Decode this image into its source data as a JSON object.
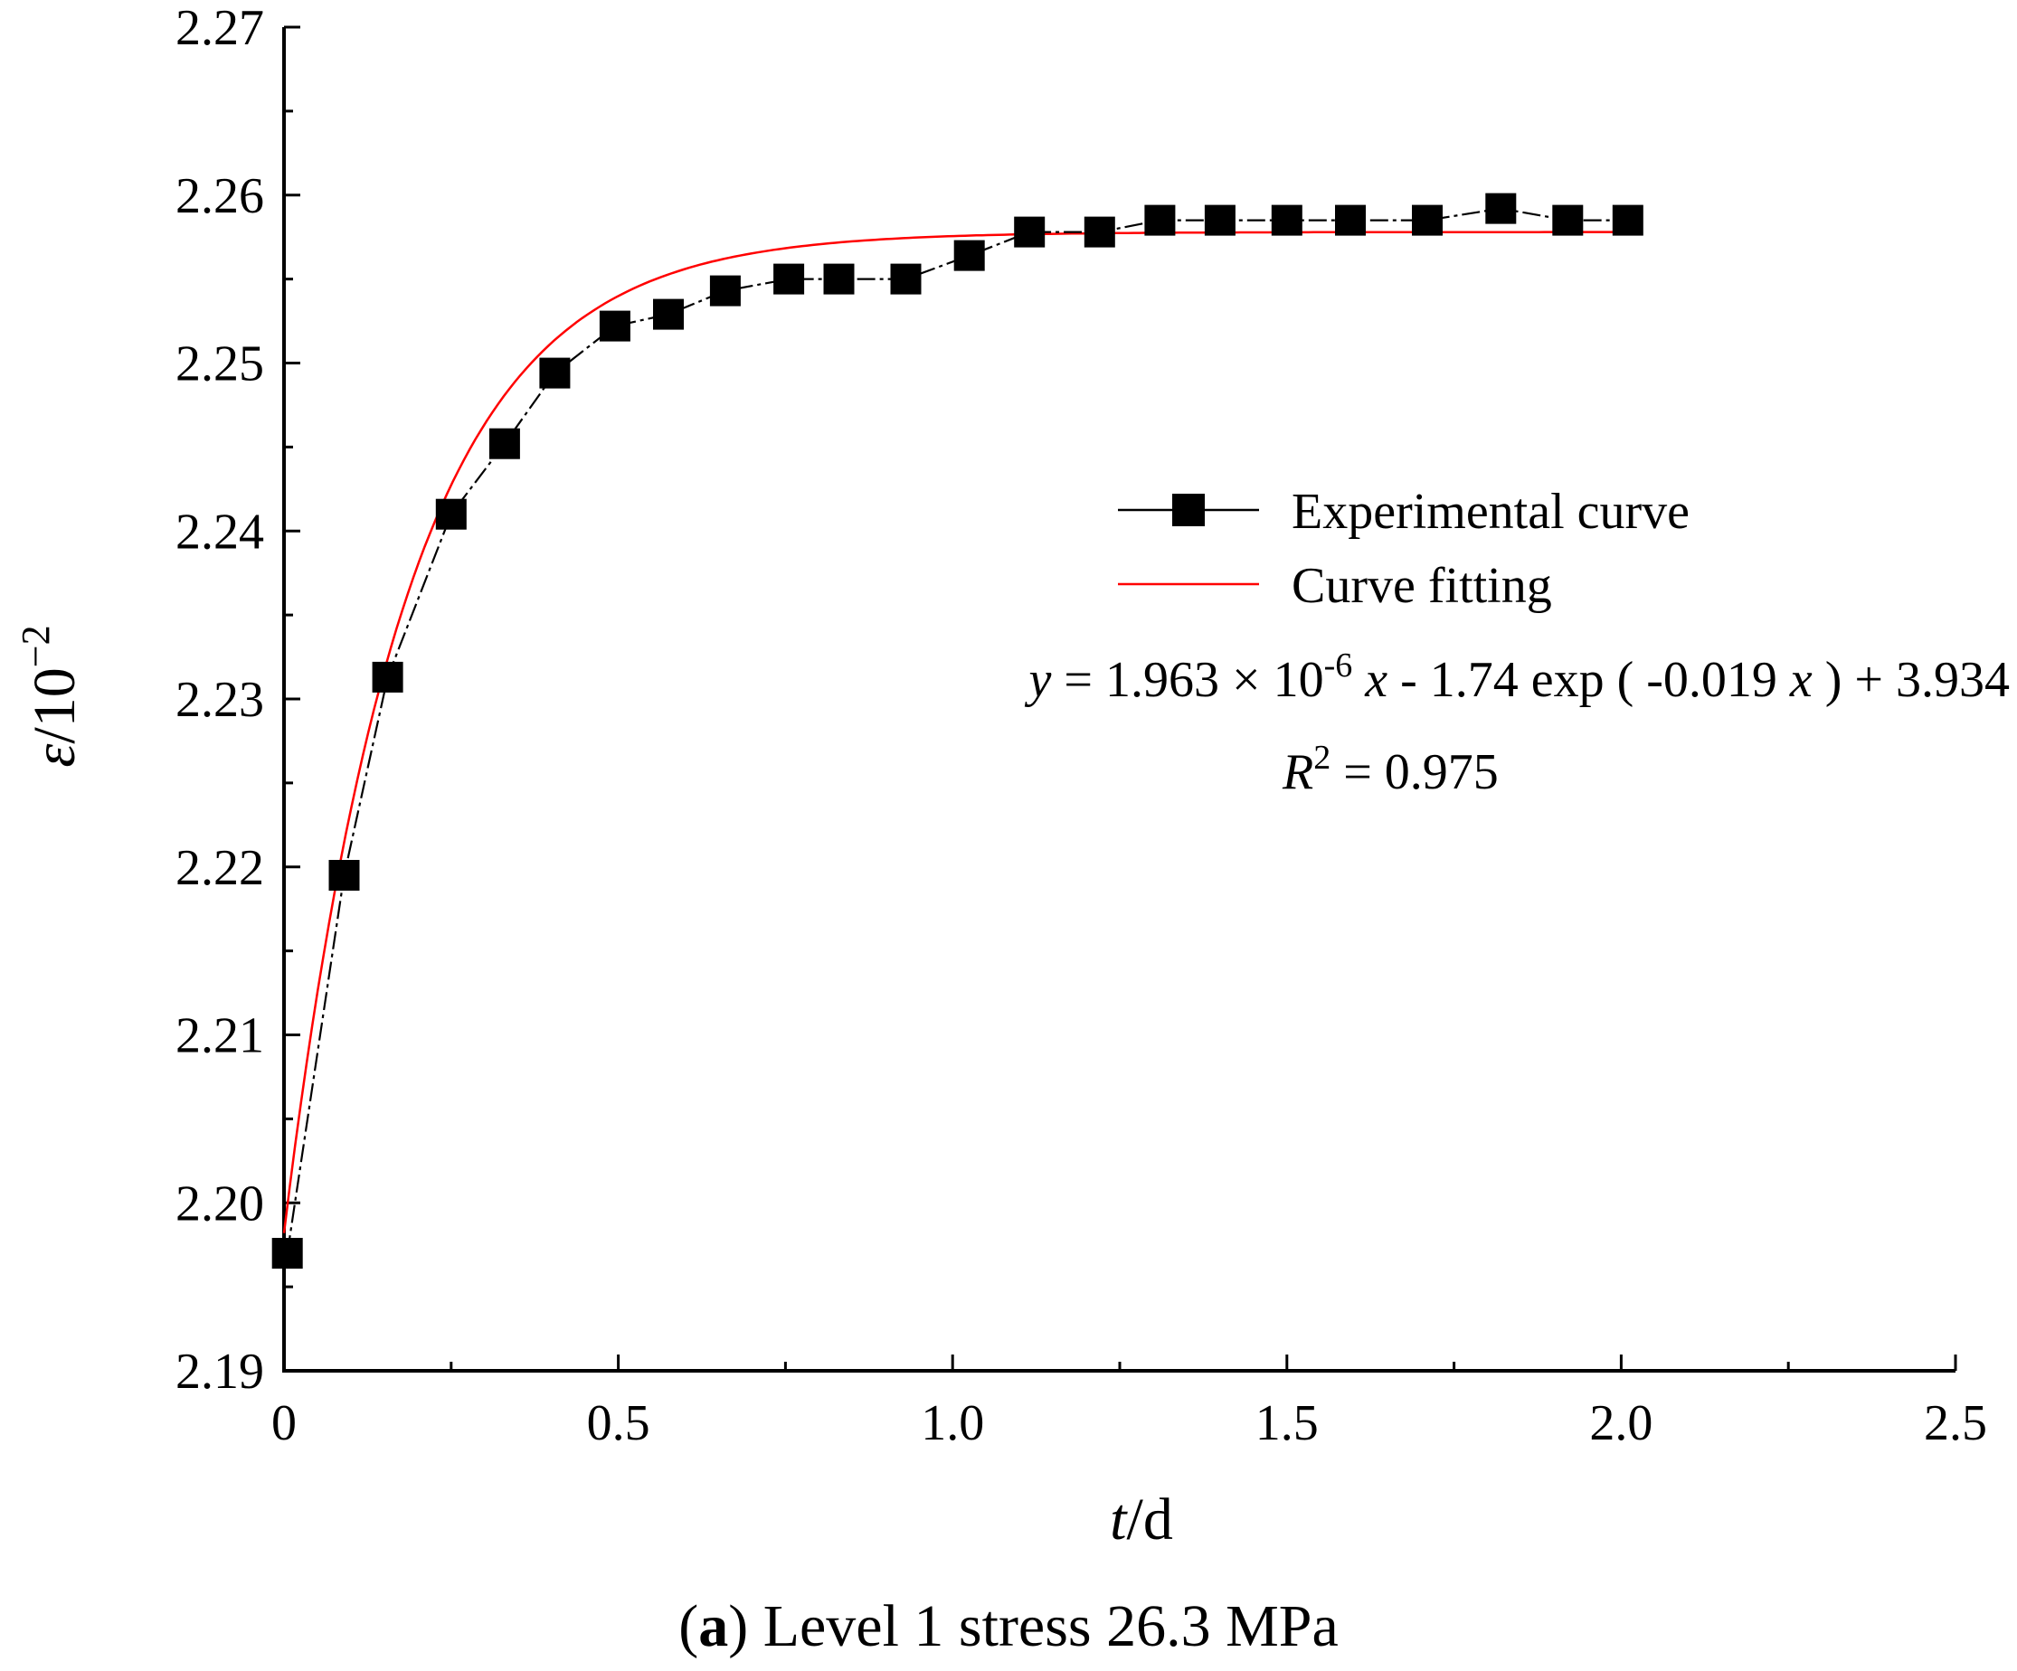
{
  "chart_data": {
    "type": "line",
    "xlabel": {
      "var": "t",
      "unit": "/d"
    },
    "ylabel": {
      "var": "ε",
      "unit": "/10",
      "exp": "−2"
    },
    "xlim": [
      0,
      2.5
    ],
    "ylim": [
      2.19,
      2.27
    ],
    "xticks": [
      "0",
      "0.5",
      "1.0",
      "1.5",
      "2.0",
      "2.5"
    ],
    "xtick_values": [
      0,
      0.5,
      1.0,
      1.5,
      2.0,
      2.5
    ],
    "yticks": [
      "2.19",
      "2.20",
      "2.21",
      "2.22",
      "2.23",
      "2.24",
      "2.25",
      "2.26",
      "2.27"
    ],
    "ytick_values": [
      2.19,
      2.2,
      2.21,
      2.22,
      2.23,
      2.24,
      2.25,
      2.26,
      2.27
    ],
    "series": [
      {
        "name": "Experimental curve",
        "color": "#000000",
        "marker": "square",
        "x": [
          0.005,
          0.09,
          0.155,
          0.25,
          0.33,
          0.405,
          0.495,
          0.575,
          0.66,
          0.755,
          0.83,
          0.93,
          1.025,
          1.115,
          1.22,
          1.31,
          1.4,
          1.5,
          1.595,
          1.71,
          1.82,
          1.92,
          2.01
        ],
        "y": [
          2.197,
          2.2195,
          2.2313,
          2.241,
          2.2452,
          2.2494,
          2.2522,
          2.2529,
          2.2543,
          2.255,
          2.255,
          2.255,
          2.2564,
          2.2578,
          2.2578,
          2.2585,
          2.2585,
          2.2585,
          2.2585,
          2.2585,
          2.2592,
          2.2585,
          2.2585
        ]
      },
      {
        "name": "Curve fitting",
        "color": "#ff0000",
        "marker": "none",
        "model": {
          "a": 2.2578,
          "b": 0.0596,
          "k": 5.5,
          "x_start": 0,
          "x_end": 2.02
        }
      }
    ],
    "annotations": {
      "equation": {
        "parts": [
          "y",
          " = 1.963 × 10",
          "-6",
          " ",
          "x",
          " - 1.74 exp ( -0.019 ",
          "x",
          " ) + 3.934"
        ]
      },
      "r2": {
        "parts": [
          "R",
          "2",
          " = 0.975"
        ]
      }
    },
    "caption": {
      "label": "a",
      "text": " Level 1 stress 26.3 MPa"
    }
  }
}
